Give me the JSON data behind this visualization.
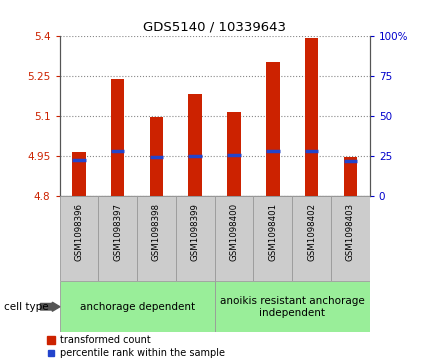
{
  "title": "GDS5140 / 10339643",
  "samples": [
    "GSM1098396",
    "GSM1098397",
    "GSM1098398",
    "GSM1098399",
    "GSM1098400",
    "GSM1098401",
    "GSM1098402",
    "GSM1098403"
  ],
  "bar_tops": [
    4.965,
    5.24,
    5.095,
    5.185,
    5.115,
    5.305,
    5.395,
    4.945
  ],
  "bar_bottoms": [
    4.8,
    4.8,
    4.8,
    4.8,
    4.8,
    4.8,
    4.8,
    4.8
  ],
  "blue_markers": [
    4.935,
    4.97,
    4.948,
    4.95,
    4.953,
    4.968,
    4.97,
    4.932
  ],
  "ylim": [
    4.8,
    5.4
  ],
  "yticks_left": [
    4.8,
    4.95,
    5.1,
    5.25,
    5.4
  ],
  "yticks_right": [
    0,
    25,
    50,
    75,
    100
  ],
  "bar_color": "#cc2200",
  "blue_color": "#2244cc",
  "group1_label": "anchorage dependent",
  "group2_label": "anoikis resistant anchorage\nindependent",
  "group1_samples_idx": [
    0,
    1,
    2,
    3
  ],
  "group2_samples_idx": [
    4,
    5,
    6,
    7
  ],
  "group_color": "#99ee99",
  "red_tick_color": "#cc2200",
  "blue_tick_color": "#0000cc",
  "legend_red_label": "transformed count",
  "legend_blue_label": "percentile rank within the sample",
  "cell_type_label": "cell type",
  "grid_linestyle": "dotted",
  "grid_color": "#888888",
  "tick_area_color": "#cccccc",
  "bar_width": 0.35
}
